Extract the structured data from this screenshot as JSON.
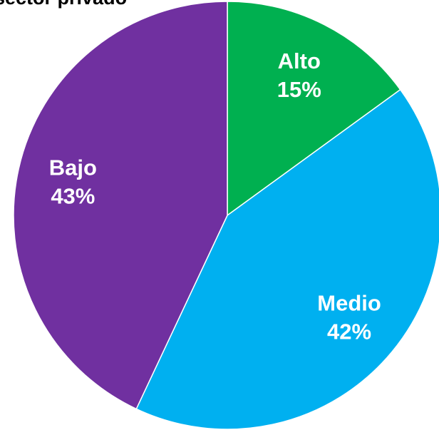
{
  "chart_data": {
    "type": "pie",
    "title": "sector privado",
    "categories": [
      "Alto",
      "Medio",
      "Bajo"
    ],
    "values": [
      15,
      42,
      43
    ],
    "value_labels": [
      "15%",
      "42%",
      "43%"
    ],
    "colors": [
      "#00b050",
      "#00b0f0",
      "#7030a0"
    ]
  }
}
